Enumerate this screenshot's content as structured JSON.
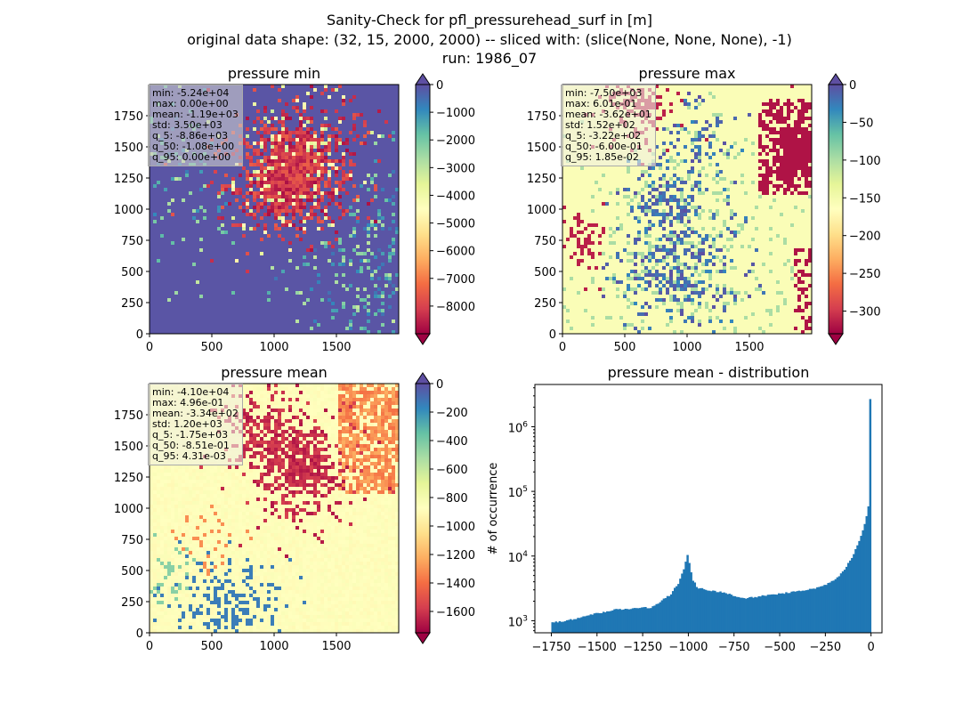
{
  "figure": {
    "suptitle_lines": [
      "Sanity-Check for pfl_pressurehead_surf in [m]",
      "original data shape: (32, 15, 2000, 2000) -- sliced with: (slice(None, None, None), -1)",
      "run: 1986_07"
    ]
  },
  "chart_data": [
    {
      "type": "heatmap",
      "title": "pressure min",
      "x_ticks": [
        "0",
        "500",
        "1000",
        "1500"
      ],
      "y_ticks": [
        "0",
        "250",
        "500",
        "750",
        "1000",
        "1250",
        "1500",
        "1750"
      ],
      "xlim": [
        0,
        2000
      ],
      "ylim": [
        0,
        2000
      ],
      "colorbar": {
        "cmap": "Spectral",
        "range": [
          -9000,
          0
        ],
        "ticks": [
          "0",
          "−1000",
          "−2000",
          "−3000",
          "−4000",
          "−5000",
          "−6000",
          "−7000",
          "−8000"
        ],
        "tick_values": [
          0,
          -1000,
          -2000,
          -3000,
          -4000,
          -5000,
          -6000,
          -7000,
          -8000
        ],
        "extend": "both"
      },
      "stats": [
        "min: -5.24e+04",
        "max: 0.00e+00",
        "mean: -1.19e+03",
        "std: 3.50e+03",
        "q_5: -8.86e+03",
        "q_50: -1.08e+00",
        "q_95: 0.00e+00"
      ]
    },
    {
      "type": "heatmap",
      "title": "pressure max",
      "x_ticks": [
        "0",
        "500",
        "1000",
        "1500"
      ],
      "y_ticks": [
        "0",
        "250",
        "500",
        "750",
        "1000",
        "1250",
        "1500",
        "1750"
      ],
      "xlim": [
        0,
        2000
      ],
      "ylim": [
        0,
        2000
      ],
      "colorbar": {
        "cmap": "Spectral",
        "range": [
          -330,
          0
        ],
        "ticks": [
          "0",
          "−50",
          "−100",
          "−150",
          "−200",
          "−250",
          "−300"
        ],
        "tick_values": [
          0,
          -50,
          -100,
          -150,
          -200,
          -250,
          -300
        ],
        "extend": "both"
      },
      "stats": [
        "min: -7.50e+03",
        "max: 6.01e-01",
        "mean: -3.62e+01",
        "std: 1.52e+02",
        "q_5: -3.22e+02",
        "q_50: -6.00e-01",
        "q_95: 1.85e-02"
      ]
    },
    {
      "type": "heatmap",
      "title": "pressure mean",
      "x_ticks": [
        "0",
        "500",
        "1000",
        "1500"
      ],
      "y_ticks": [
        "0",
        "250",
        "500",
        "750",
        "1000",
        "1250",
        "1500",
        "1750"
      ],
      "xlim": [
        0,
        2000
      ],
      "ylim": [
        0,
        2000
      ],
      "colorbar": {
        "cmap": "Spectral",
        "range": [
          -1750,
          0
        ],
        "ticks": [
          "0",
          "−200",
          "−400",
          "−600",
          "−800",
          "−1000",
          "−1200",
          "−1400",
          "−1600"
        ],
        "tick_values": [
          0,
          -200,
          -400,
          -600,
          -800,
          -1000,
          -1200,
          -1400,
          -1600
        ],
        "extend": "both"
      },
      "stats": [
        "min: -4.10e+04",
        "max: 4.96e-01",
        "mean: -3.34e+02",
        "std: 1.20e+03",
        "q_5: -1.75e+03",
        "q_50: -8.51e-01",
        "q_95: 4.31e-03"
      ]
    },
    {
      "type": "bar",
      "title": "pressure mean - distribution",
      "ylabel": "# of occurrence",
      "xlabel": "",
      "yscale": "log",
      "xlim": [
        -1840,
        60
      ],
      "ylim": [
        650,
        4500000
      ],
      "x_ticks": [
        "−1750",
        "−1500",
        "−1250",
        "−1000",
        "−750",
        "−500",
        "−250",
        "0"
      ],
      "x_tick_values": [
        -1750,
        -1500,
        -1250,
        -1000,
        -750,
        -500,
        -250,
        0
      ],
      "y_ticks": [
        {
          "base": "10",
          "exp": "3",
          "value": 1000
        },
        {
          "base": "10",
          "exp": "4",
          "value": 10000
        },
        {
          "base": "10",
          "exp": "5",
          "value": 100000
        },
        {
          "base": "10",
          "exp": "6",
          "value": 1000000
        }
      ],
      "bin_range": [
        -1750,
        0
      ],
      "bin_count": 175,
      "bar_color": "#1f77b4",
      "profile_x": [
        -1750,
        -1600,
        -1500,
        -1400,
        -1300,
        -1200,
        -1100,
        -1050,
        -1020,
        -1005,
        -995,
        -980,
        -950,
        -900,
        -800,
        -700,
        -600,
        -500,
        -400,
        -300,
        -250,
        -200,
        -150,
        -100,
        -60,
        -40,
        -25,
        -15,
        -8,
        -5,
        0
      ],
      "profile_y": [
        920,
        1100,
        1300,
        1500,
        1550,
        1600,
        2500,
        4000,
        7000,
        10500,
        8000,
        4500,
        3200,
        3000,
        2700,
        2200,
        2400,
        2600,
        2900,
        3200,
        3600,
        4200,
        6000,
        10000,
        18000,
        28000,
        42000,
        60000,
        70000,
        2600000,
        2600000
      ]
    }
  ]
}
